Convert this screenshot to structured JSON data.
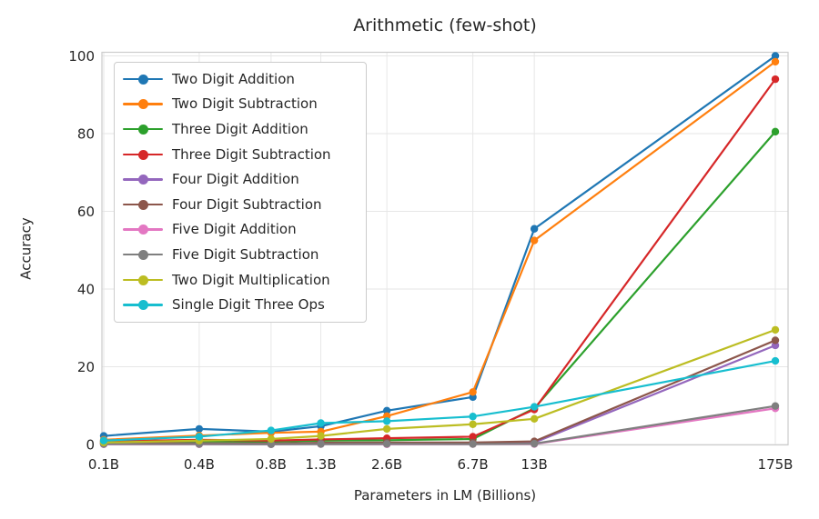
{
  "chart_data": {
    "type": "line",
    "title": "Arithmetic (few-shot)",
    "xlabel": "Parameters in LM (Billions)",
    "ylabel": "Accuracy",
    "x_scale": "log",
    "grid": true,
    "legend_position": "upper left",
    "ylim": [
      0,
      100
    ],
    "y_ticks": [
      0,
      20,
      40,
      60,
      80,
      100
    ],
    "x": [
      0.125,
      0.35,
      0.76,
      1.3,
      2.65,
      6.7,
      13,
      175
    ],
    "x_tick_labels": [
      "0.1B",
      "0.4B",
      "0.8B",
      "1.3B",
      "2.6B",
      "6.7B",
      "13B",
      "175B"
    ],
    "series": [
      {
        "name": "Two Digit Addition",
        "color": "#1f77b4",
        "values": [
          2.2,
          4.0,
          3.3,
          4.7,
          8.7,
          12.2,
          55.5,
          100.0
        ]
      },
      {
        "name": "Two Digit Subtraction",
        "color": "#ff7f0e",
        "values": [
          1.2,
          2.3,
          3.0,
          3.3,
          7.3,
          13.5,
          52.5,
          98.5
        ]
      },
      {
        "name": "Three Digit Addition",
        "color": "#2ca02c",
        "values": [
          0.6,
          0.8,
          0.7,
          1.0,
          1.1,
          1.4,
          9.3,
          80.5
        ]
      },
      {
        "name": "Three Digit Subtraction",
        "color": "#d62728",
        "values": [
          0.8,
          1.2,
          1.0,
          1.3,
          1.6,
          2.0,
          9.0,
          94.0
        ]
      },
      {
        "name": "Four Digit Addition",
        "color": "#9467bd",
        "values": [
          0.25,
          0.2,
          0.2,
          0.25,
          0.3,
          0.4,
          0.5,
          25.5
        ]
      },
      {
        "name": "Four Digit Subtraction",
        "color": "#8c564b",
        "values": [
          0.3,
          0.3,
          0.25,
          0.45,
          0.5,
          0.5,
          0.8,
          26.8
        ]
      },
      {
        "name": "Five Digit Addition",
        "color": "#e377c2",
        "values": [
          0.05,
          0.05,
          0.05,
          0.1,
          0.05,
          0.1,
          0.1,
          9.3
        ]
      },
      {
        "name": "Five Digit Subtraction",
        "color": "#7f7f7f",
        "values": [
          0.1,
          0.1,
          0.05,
          0.1,
          0.15,
          0.1,
          0.2,
          9.9
        ]
      },
      {
        "name": "Two Digit Multiplication",
        "color": "#bcbd22",
        "values": [
          0.5,
          1.0,
          1.4,
          2.2,
          4.0,
          5.2,
          6.6,
          29.5
        ]
      },
      {
        "name": "Single Digit Three Ops",
        "color": "#17becf",
        "values": [
          1.0,
          2.0,
          3.6,
          5.5,
          6.0,
          7.2,
          9.7,
          21.5
        ]
      }
    ],
    "style": {
      "grid_color": "#e6e6e6",
      "spine_color": "#cccccc",
      "text_color": "#262626"
    }
  }
}
